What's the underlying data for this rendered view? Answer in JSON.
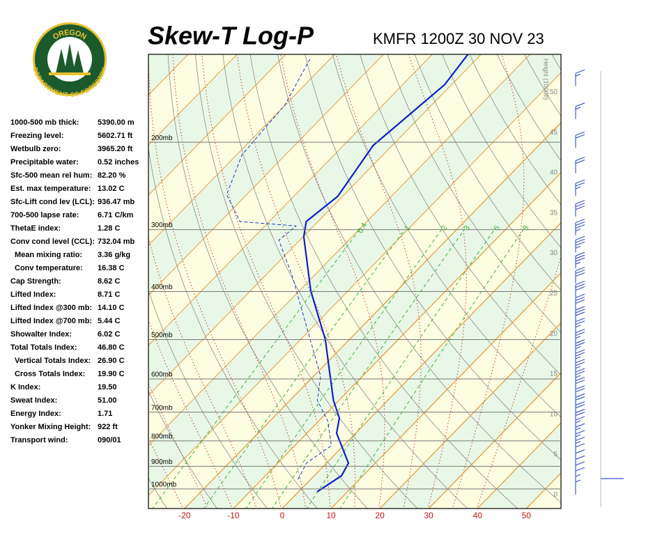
{
  "logo": {
    "top": "OREGON",
    "bottom": "DEPARTMENT OF FORESTRY"
  },
  "indices": [
    [
      "1000-500 mb thick:",
      "5390.00 m"
    ],
    [
      "Freezing level:",
      "5602.71 ft"
    ],
    [
      "Wetbulb zero:",
      "3965.20 ft"
    ],
    [
      "Precipitable water:",
      "0.52 inches"
    ],
    [
      "Sfc-500 mean rel hum:",
      "82.20 %"
    ],
    [
      "Est. max temperature:",
      "13.02 C"
    ],
    [
      "Sfc-Lift cond lev (LCL):",
      "936.47 mb"
    ],
    [
      "700-500 lapse rate:",
      "6.71 C/km"
    ],
    [
      "ThetaE index:",
      "1.28 C"
    ],
    [
      "Conv cond level (CCL):",
      "732.04 mb"
    ],
    [
      "Mean mixing ratio:",
      "3.36 g/kg"
    ],
    [
      "Conv temperature:",
      "16.38 C"
    ],
    [
      "Cap Strength:",
      "8.62 C"
    ],
    [
      "Lifted Index:",
      "8.71 C"
    ],
    [
      "Lifted Index @300 mb:",
      "14.10 C"
    ],
    [
      "Lifted Index @700 mb:",
      "5.44 C"
    ],
    [
      "Showalter Index:",
      "6.02 C"
    ],
    [
      "Total Totals Index:",
      "46.80 C"
    ],
    [
      "Vertical Totals Index:",
      "26.90 C"
    ],
    [
      "Cross Totals Index:",
      "19.90 C"
    ],
    [
      "K Index:",
      "19.50"
    ],
    [
      "Sweat Index:",
      "51.00"
    ],
    [
      "Energy Index:",
      "1.71"
    ],
    [
      "Yonker Mixing Height:",
      "922 ft"
    ],
    [
      "Transport wind:",
      "090/01"
    ]
  ],
  "chart_data": {
    "type": "skewt",
    "title": "Skew-T Log-P",
    "subtitle": "KMFR 1200Z 30 NOV 23",
    "xlim": [
      -27.4,
      57.1
    ],
    "xticks": [
      -20,
      -10,
      0,
      10,
      20,
      30,
      40,
      50
    ],
    "ylim": [
      1095,
      133
    ],
    "log_scale": true,
    "yticks": [
      {
        "value": 1000,
        "label": "1000mb"
      },
      {
        "value": 900,
        "label": "900mb"
      },
      {
        "value": 800,
        "label": "800mb"
      },
      {
        "value": 700,
        "label": "700mb"
      },
      {
        "value": 600,
        "label": "600mb"
      },
      {
        "value": 500,
        "label": "500mb"
      },
      {
        "value": 400,
        "label": "400mb"
      },
      {
        "value": 300,
        "label": "300mb"
      },
      {
        "value": 200,
        "label": "200mb"
      }
    ],
    "height_label": "Height (1000ft)",
    "hlim": [
      -1.7,
      54.7
    ],
    "hticks": [
      0,
      5,
      10,
      15,
      20,
      25,
      30,
      35,
      40,
      45,
      50
    ],
    "mixing_ratios": [
      0.4,
      1,
      2,
      3,
      5,
      8
    ],
    "mixing_color": "#33b533",
    "temperature_color": "#0a1ecc",
    "dewpoint_color": "#1e32d2",
    "pressure": [
      1013,
      940,
      887,
      772,
      719,
      663,
      569,
      500,
      399,
      310,
      289,
      257,
      203,
      153,
      133
    ],
    "temperature": [
      3.8,
      5.6,
      4.5,
      -3.9,
      -6.4,
      -11.1,
      -18.6,
      -24.9,
      -37.6,
      -49.9,
      -52.4,
      -51,
      -53.9,
      -51.4,
      -52.7
    ],
    "dew_pressure": [
      956,
      887,
      818,
      730,
      663,
      592,
      472,
      376,
      315,
      295,
      289,
      255,
      212,
      168,
      136
    ],
    "dewpoint": [
      -2.6,
      -4.1,
      -2.5,
      -8.1,
      -14.4,
      -18.6,
      -31.2,
      -43.8,
      -54.3,
      -53.6,
      -66,
      -74.1,
      -78.9,
      -80.1,
      -84.1
    ],
    "wind_pressure": [
      1000,
      975,
      950,
      925,
      900,
      875,
      850,
      825,
      800,
      775,
      750,
      725,
      700,
      675,
      650,
      625,
      600,
      575,
      550,
      525,
      500,
      475,
      450,
      425,
      400,
      375,
      350,
      325,
      300,
      275,
      250,
      225,
      200,
      175,
      150
    ],
    "wind_speed": [
      5,
      5,
      10,
      10,
      10,
      10,
      10,
      15,
      15,
      15,
      15,
      20,
      20,
      20,
      20,
      20,
      25,
      25,
      25,
      25,
      25,
      25,
      30,
      30,
      30,
      30,
      35,
      35,
      35,
      30,
      25,
      20,
      20,
      15,
      15
    ]
  }
}
